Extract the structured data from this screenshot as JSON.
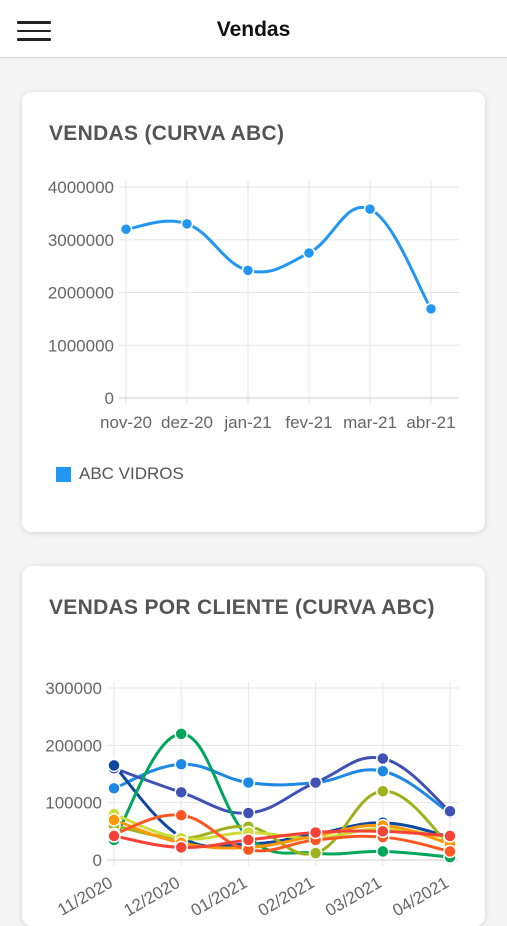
{
  "header": {
    "title": "Vendas"
  },
  "chart_data": [
    {
      "type": "line",
      "title": "VENDAS (CURVA ABC)",
      "categories": [
        "nov-20",
        "dez-20",
        "jan-21",
        "fev-21",
        "mar-21",
        "abr-21"
      ],
      "series": [
        {
          "name": "ABC VIDROS",
          "color": "#2196f3",
          "values": [
            3200000,
            3300000,
            2420000,
            2750000,
            3580000,
            1690000
          ]
        }
      ],
      "ylim": [
        0,
        4000000
      ],
      "yticks": [
        "4000000",
        "3000000",
        "2000000",
        "1000000",
        "0"
      ],
      "legend": "bottom-left",
      "grid": true
    },
    {
      "type": "line",
      "title": "VENDAS POR CLIENTE (CURVA ABC)",
      "categories": [
        "11/2020",
        "12/2020",
        "01/2021",
        "02/2021",
        "03/2021",
        "04/2021"
      ],
      "ylim": [
        0,
        300000
      ],
      "yticks": [
        "300000",
        "200000",
        "100000",
        "0"
      ],
      "grid": true,
      "series": [
        {
          "color": "#1e88e5",
          "values": [
            125000,
            167000,
            135000,
            135000,
            155000,
            82000
          ]
        },
        {
          "color": "#3f51b5",
          "values": [
            160000,
            118000,
            82000,
            135000,
            177000,
            85000
          ]
        },
        {
          "color": "#0d47a1",
          "values": [
            165000,
            40000,
            28000,
            45000,
            65000,
            40000
          ]
        },
        {
          "color": "#00a65a",
          "values": [
            35000,
            220000,
            40000,
            12000,
            15000,
            5000
          ]
        },
        {
          "color": "#9fb21e",
          "values": [
            60000,
            38000,
            58000,
            12000,
            120000,
            25000
          ]
        },
        {
          "color": "#cddc39",
          "values": [
            80000,
            38000,
            48000,
            38000,
            55000,
            38000
          ]
        },
        {
          "color": "#ff9800",
          "values": [
            70000,
            30000,
            22000,
            42000,
            60000,
            28000
          ]
        },
        {
          "color": "#ff5722",
          "values": [
            45000,
            78000,
            18000,
            35000,
            40000,
            15000
          ]
        },
        {
          "color": "#f44336",
          "values": [
            42000,
            22000,
            35000,
            48000,
            50000,
            42000
          ]
        }
      ]
    }
  ]
}
